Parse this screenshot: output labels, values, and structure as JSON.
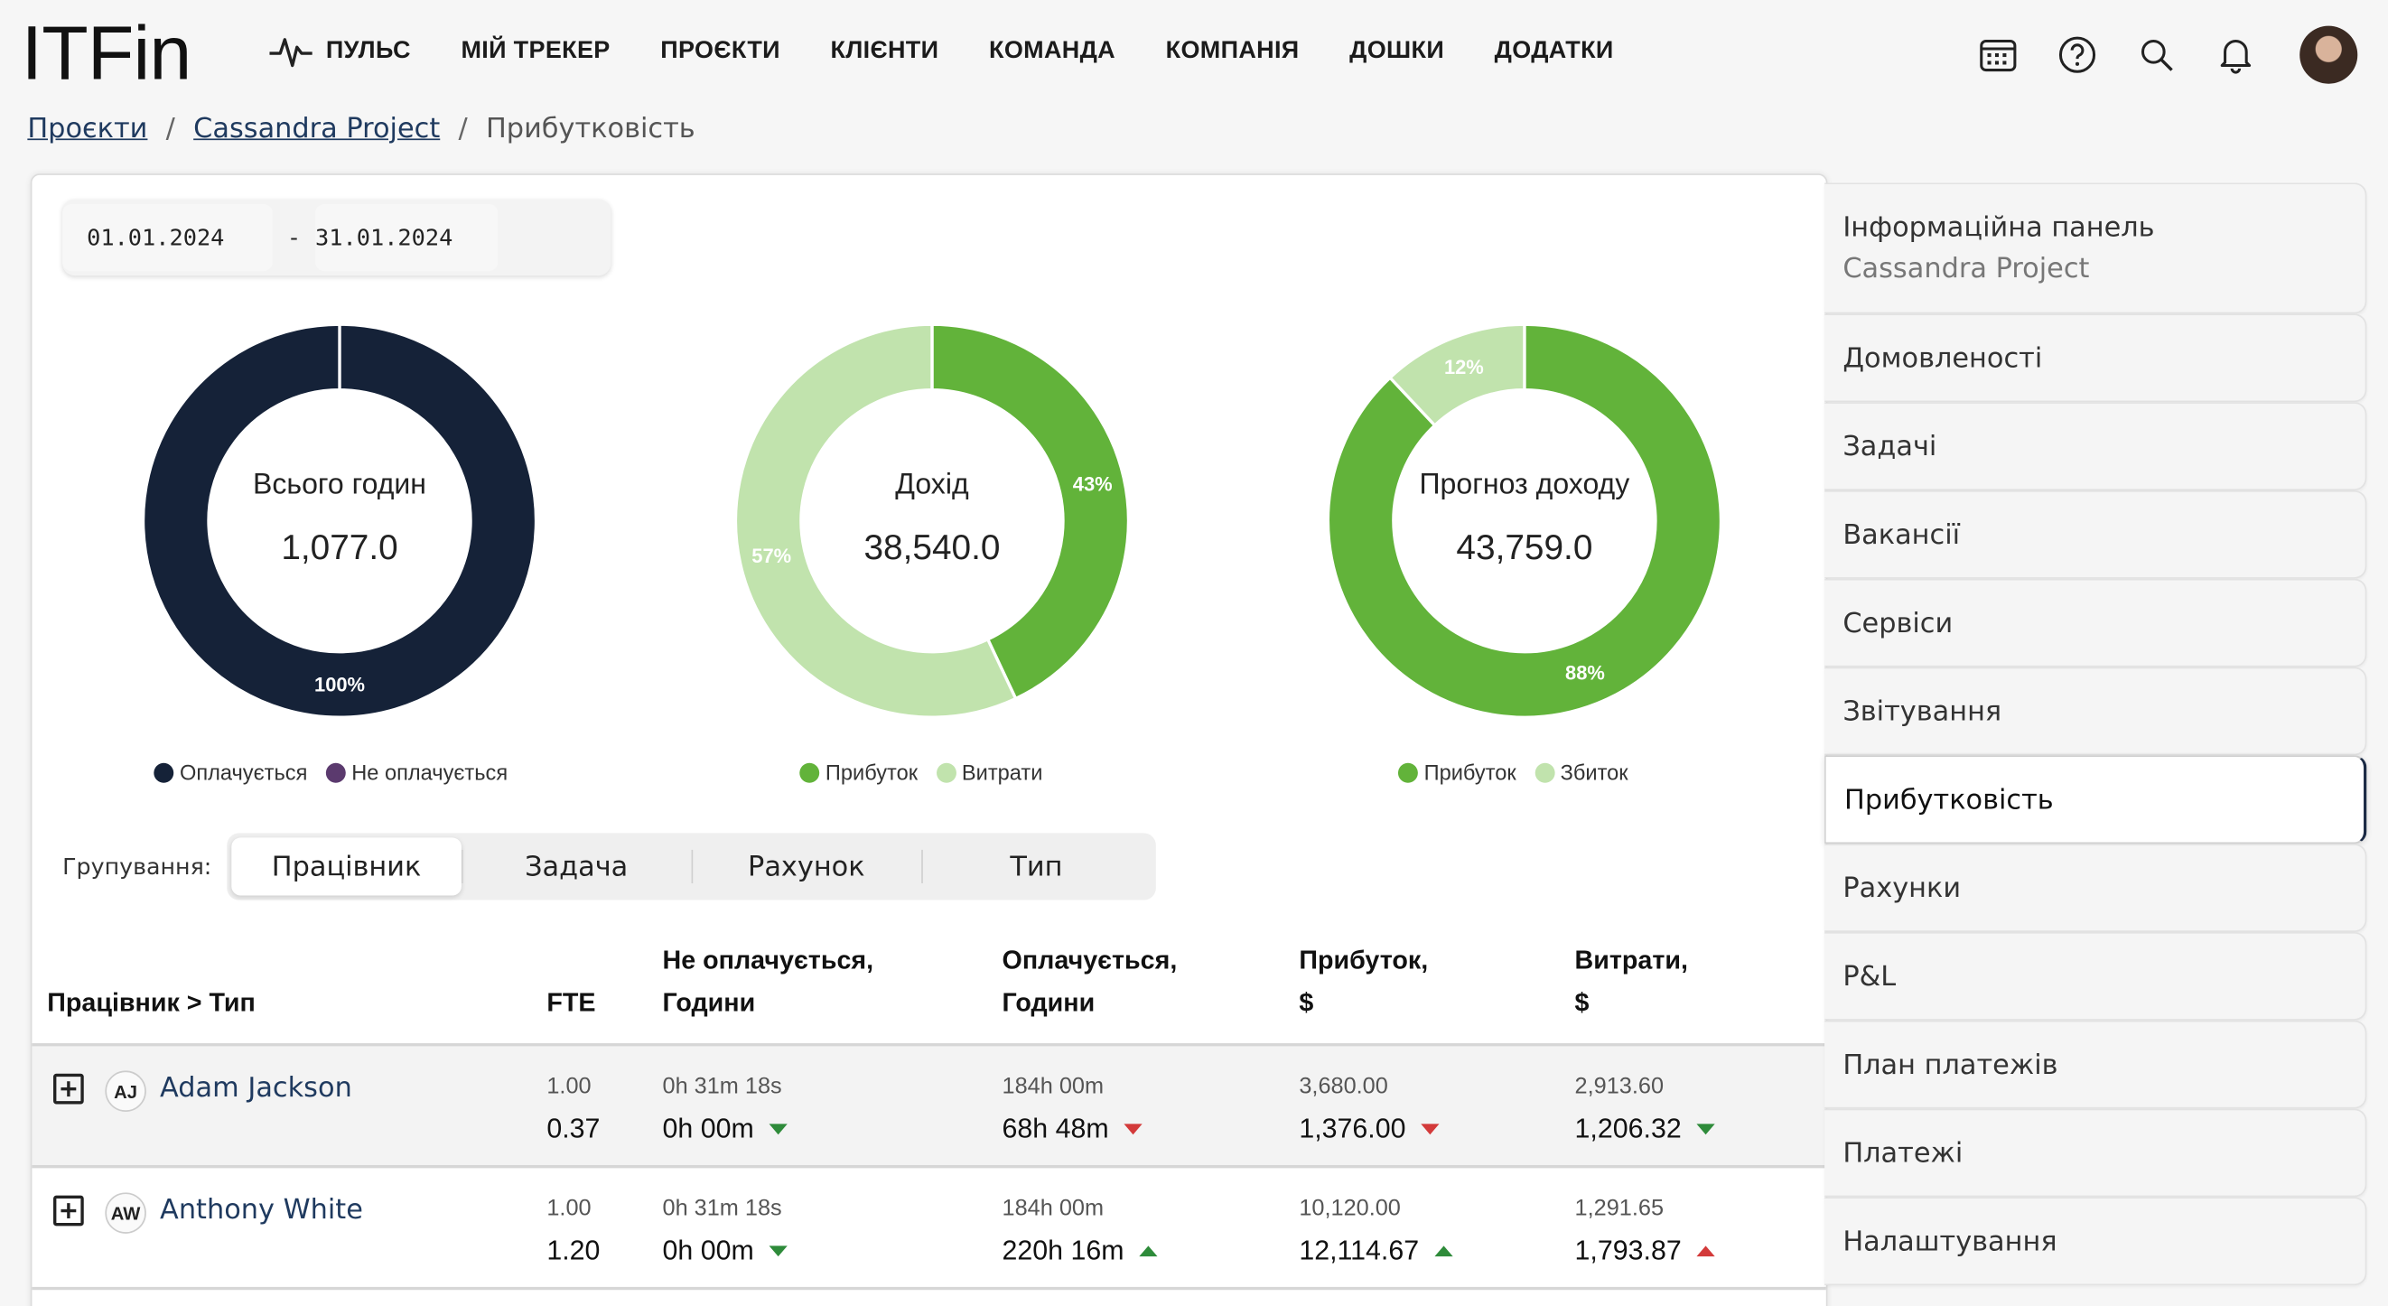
{
  "app": {
    "logo": "ITFin"
  },
  "nav": [
    {
      "label": "ПУЛЬС",
      "icon": "pulse-icon"
    },
    {
      "label": "МІЙ ТРЕКЕР"
    },
    {
      "label": "ПРОЄКТИ"
    },
    {
      "label": "КЛІЄНТИ"
    },
    {
      "label": "КОМАНДА"
    },
    {
      "label": "КОМПАНІЯ"
    },
    {
      "label": "ДОШКИ"
    },
    {
      "label": "ДОДАТКИ"
    }
  ],
  "top_icons": [
    "calendar-icon",
    "help-icon",
    "search-icon",
    "bell-icon",
    "avatar"
  ],
  "breadcrumb": {
    "root": "Проєкти",
    "project": "Cassandra Project",
    "current": "Прибутковість",
    "sep": "/"
  },
  "date_range": {
    "from": "01.01.2024",
    "sep": "-",
    "to": "31.01.2024"
  },
  "colors": {
    "navy": "#152238",
    "purple": "#5b3a6e",
    "green": "#62b33a",
    "light_green": "#c1e3ad",
    "link": "#1f3a5f"
  },
  "chart_data": [
    {
      "type": "pie",
      "title": "Всього годин",
      "value_label": "1,077.0",
      "slices": [
        {
          "name": "Оплачується",
          "value": 100,
          "label": "100%"
        },
        {
          "name": "Не оплачується",
          "value": 0
        }
      ]
    },
    {
      "type": "pie",
      "title": "Дохід",
      "value_label": "38,540.0",
      "slices": [
        {
          "name": "Прибуток",
          "value": 43,
          "label": "43%"
        },
        {
          "name": "Витрати",
          "value": 57,
          "label": "57%"
        }
      ]
    },
    {
      "type": "pie",
      "title": "Прогноз доходу",
      "value_label": "43,759.0",
      "slices": [
        {
          "name": "Прибуток",
          "value": 88,
          "label": "88%"
        },
        {
          "name": "Збиток",
          "value": 12,
          "label": "12%"
        }
      ]
    }
  ],
  "grouping": {
    "label": "Групування:",
    "options": [
      "Працівник",
      "Задача",
      "Рахунок",
      "Тип"
    ],
    "active": "Працівник"
  },
  "table": {
    "headers": {
      "name": "Працівник > Тип",
      "fte": "FTE",
      "nonbill_1": "Не оплачується,",
      "nonbill_2": "Години",
      "bill_1": "Оплачується,",
      "bill_2": "Години",
      "profit_1": "Прибуток,",
      "profit_2": "$",
      "cost_1": "Витрати,",
      "cost_2": "$"
    },
    "rows": [
      {
        "initials": "AJ",
        "name": "Adam Jackson",
        "fte_plan": "1.00",
        "fte": "0.37",
        "nonbill_plan": "0h 31m 18s",
        "nonbill": "0h 00m",
        "nonbill_trend": "down-green",
        "bill_plan": "184h 00m",
        "bill": "68h 48m",
        "bill_trend": "down-red",
        "profit_plan": "3,680.00",
        "profit": "1,376.00",
        "profit_trend": "down-red",
        "cost_plan": "2,913.60",
        "cost": "1,206.32",
        "cost_trend": "down-green"
      },
      {
        "initials": "AW",
        "name": "Anthony White",
        "fte_plan": "1.00",
        "fte": "1.20",
        "nonbill_plan": "0h 31m 18s",
        "nonbill": "0h 00m",
        "nonbill_trend": "down-green",
        "bill_plan": "184h 00m",
        "bill": "220h 16m",
        "bill_trend": "up-green",
        "profit_plan": "10,120.00",
        "profit": "12,114.67",
        "profit_trend": "up-green",
        "cost_plan": "1,291.65",
        "cost": "1,793.87",
        "cost_trend": "up-red"
      }
    ]
  },
  "side_menu": {
    "dashboard": "Інформаційна панель",
    "dashboard_sub": "Cassandra Project",
    "items": [
      "Домовленості",
      "Задачі",
      "Вакансії",
      "Сервіси",
      "Звітування",
      "Прибутковість",
      "Рахунки",
      "P&L",
      "План платежів",
      "Платежі",
      "Налаштування"
    ],
    "active": "Прибутковість"
  }
}
